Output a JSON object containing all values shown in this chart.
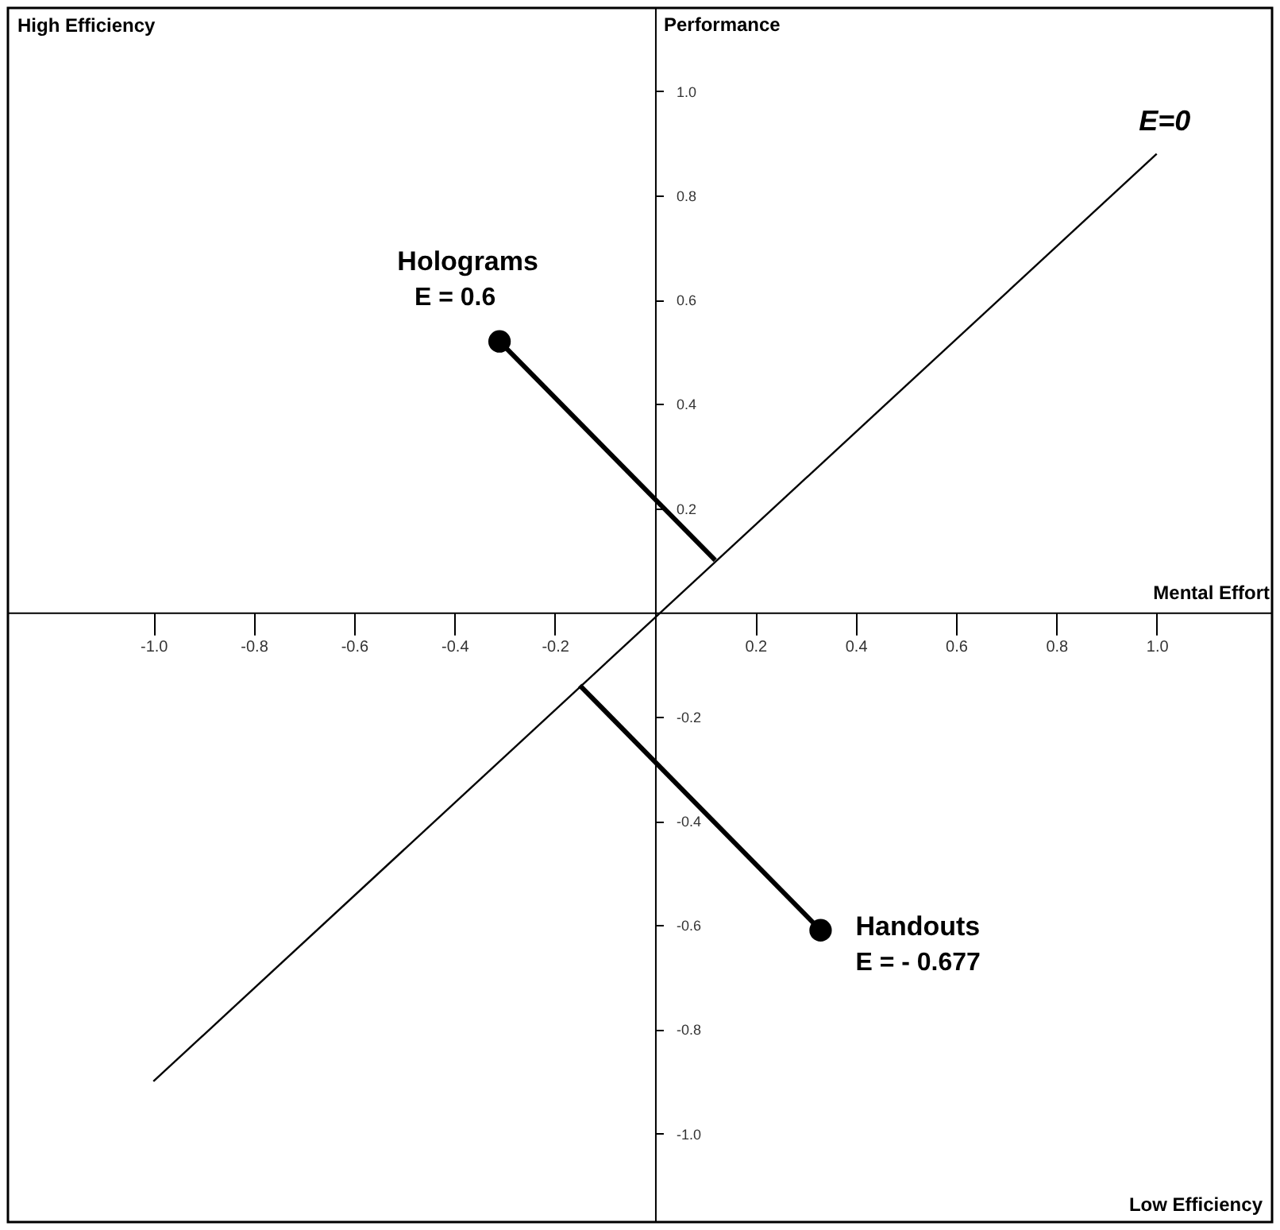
{
  "chart_data": {
    "type": "scatter",
    "xlabel": "Mental Effort",
    "ylabel": "Performance",
    "xlim": [
      -1.29,
      1.23
    ],
    "ylim": [
      -1.17,
      1.16
    ],
    "xticks": [
      {
        "value": -1,
        "label": "-1.0"
      },
      {
        "value": -0.8,
        "label": "-0.8"
      },
      {
        "value": -0.6,
        "label": "-0.6"
      },
      {
        "value": -0.4,
        "label": "-0.4"
      },
      {
        "value": -0.2,
        "label": "-0.2"
      },
      {
        "value": 0.2,
        "label": "0.2"
      },
      {
        "value": 0.4,
        "label": "0.4"
      },
      {
        "value": 0.6,
        "label": "0.6"
      },
      {
        "value": 0.8,
        "label": "0.8"
      },
      {
        "value": 1,
        "label": "1.0"
      }
    ],
    "yticks": [
      {
        "value": -1,
        "label": "-1.0"
      },
      {
        "value": -0.8,
        "label": "-0.8"
      },
      {
        "value": -0.6,
        "label": "-0.6"
      },
      {
        "value": -0.4,
        "label": "-0.4"
      },
      {
        "value": -0.2,
        "label": "-0.2"
      },
      {
        "value": 0.2,
        "label": "0.2"
      },
      {
        "value": 0.4,
        "label": "0.4"
      },
      {
        "value": 0.6,
        "label": "0.6"
      },
      {
        "value": 0.8,
        "label": "0.8"
      },
      {
        "value": 1,
        "label": "1.0"
      }
    ],
    "series": [
      {
        "type": "line",
        "x": [
          -1.0,
          1.0
        ],
        "values": [
          -0.9,
          0.88
        ],
        "color": "#000000"
      },
      {
        "type": "line",
        "x": [
          -0.31,
          0.12
        ],
        "values": [
          0.52,
          0.1
        ],
        "color": "#000000"
      },
      {
        "type": "line",
        "x": [
          0.33,
          -0.15
        ],
        "values": [
          -0.61,
          -0.14
        ],
        "color": "#000000"
      },
      {
        "name": "Holograms",
        "x": [
          -0.31
        ],
        "values": [
          0.52
        ],
        "color": "#000000",
        "marker": "circle"
      },
      {
        "name": "Handouts",
        "x": [
          0.33
        ],
        "values": [
          -0.61
        ],
        "color": "#000000",
        "marker": "circle"
      }
    ],
    "annotations": [
      "High Efficiency",
      "Low Efficiency",
      {
        "text": "E = 0.6",
        "x": -0.31,
        "y": 0.52
      },
      {
        "text": "E = - 0.677",
        "x": 0.33,
        "y": -0.61
      },
      {
        "text": "E=0",
        "x": 1.0,
        "y": 0.88
      }
    ],
    "line_style": "solid",
    "grid": false
  }
}
